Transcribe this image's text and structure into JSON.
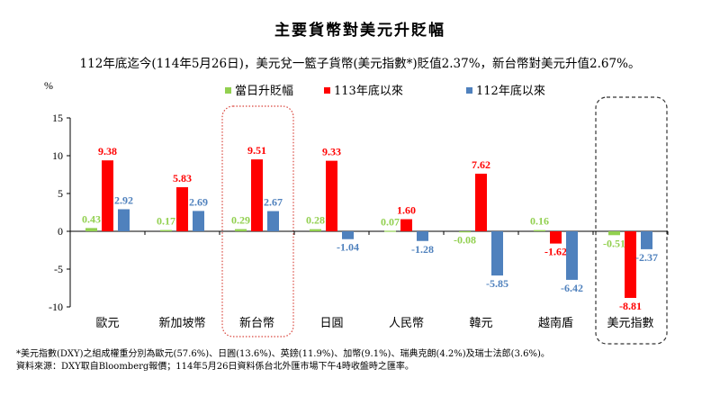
{
  "title": "主要貨幣對美元升貶幅",
  "subtitle": "112年底迄今(114年5月26日)，美元兌一籃子貨幣(美元指數*)貶值2.37%，新台幣對美元升值2.67%。",
  "footnotes": [
    "*美元指數(DXY)之組成權重分別為歐元(57.6%)、日圓(13.6%)、英鎊(11.9%)、加幣(9.1%)、瑞典克朗(4.2%)及瑞士法郎(3.6%)。",
    "資料來源：DXY取自Bloomberg報價；114年5月26日資料係台北外匯市場下午4時收盤時之匯率。"
  ],
  "colors": {
    "series1": "#92d050",
    "series2": "#ff0000",
    "series3": "#4f81bd",
    "highlight1": "#d9453c",
    "highlight2": "#333333"
  },
  "highlights": [
    {
      "category": "新台幣",
      "style": "dotted-red"
    },
    {
      "category": "美元指數",
      "style": "dashed-dark"
    }
  ],
  "chart_data": {
    "type": "bar",
    "ylabel": "%",
    "ylim": [
      -10,
      15
    ],
    "yticks": [
      15,
      10,
      5,
      0,
      -5,
      -10
    ],
    "grid": false,
    "legend": "top-center",
    "categories": [
      "歐元",
      "新加坡幣",
      "新台幣",
      "日圓",
      "人民幣",
      "韓元",
      "越南盾",
      "美元指數"
    ],
    "series": [
      {
        "name": "當日升貶幅",
        "values": [
          0.43,
          0.17,
          0.29,
          0.28,
          0.07,
          -0.08,
          0.16,
          -0.51
        ]
      },
      {
        "name": "113年底以來",
        "values": [
          9.38,
          5.83,
          9.51,
          9.33,
          1.6,
          7.62,
          -1.62,
          -8.81
        ]
      },
      {
        "name": "112年底以來",
        "values": [
          2.92,
          2.69,
          2.67,
          -1.04,
          -1.28,
          -5.85,
          -6.42,
          -2.37
        ]
      }
    ]
  }
}
